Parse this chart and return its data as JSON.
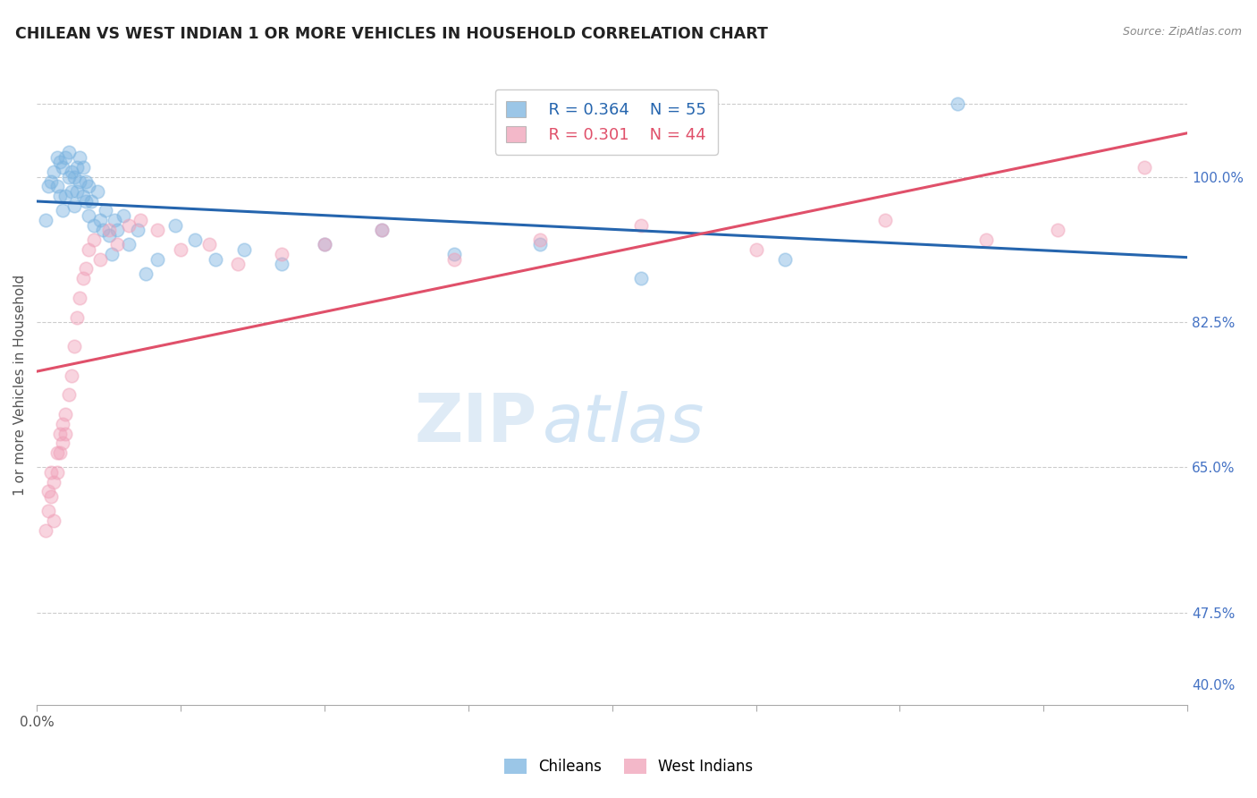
{
  "title": "CHILEAN VS WEST INDIAN 1 OR MORE VEHICLES IN HOUSEHOLD CORRELATION CHART",
  "source": "Source: ZipAtlas.com",
  "ylabel": "1 or more Vehicles in Household",
  "xmin": 0.0,
  "xmax": 0.4,
  "ymin": 0.38,
  "ymax": 1.04,
  "blue_color": "#7ab3e0",
  "pink_color": "#f0a0b8",
  "blue_line_color": "#2565ae",
  "pink_line_color": "#e0506a",
  "legend_r_blue": "R = 0.364",
  "legend_n_blue": "N = 55",
  "legend_r_pink": "R = 0.301",
  "legend_n_pink": "N = 44",
  "chilean_x": [
    0.003,
    0.004,
    0.005,
    0.006,
    0.007,
    0.007,
    0.008,
    0.008,
    0.009,
    0.009,
    0.01,
    0.01,
    0.011,
    0.011,
    0.012,
    0.012,
    0.013,
    0.013,
    0.014,
    0.014,
    0.015,
    0.015,
    0.016,
    0.016,
    0.017,
    0.017,
    0.018,
    0.018,
    0.019,
    0.02,
    0.021,
    0.022,
    0.023,
    0.024,
    0.025,
    0.026,
    0.027,
    0.028,
    0.03,
    0.032,
    0.035,
    0.038,
    0.042,
    0.048,
    0.055,
    0.062,
    0.072,
    0.085,
    0.1,
    0.12,
    0.145,
    0.175,
    0.21,
    0.26,
    0.32
  ],
  "chilean_y": [
    0.88,
    0.915,
    0.92,
    0.93,
    0.945,
    0.915,
    0.905,
    0.94,
    0.89,
    0.935,
    0.905,
    0.945,
    0.925,
    0.95,
    0.93,
    0.91,
    0.895,
    0.925,
    0.91,
    0.935,
    0.92,
    0.945,
    0.905,
    0.935,
    0.9,
    0.92,
    0.885,
    0.915,
    0.9,
    0.875,
    0.91,
    0.88,
    0.87,
    0.89,
    0.865,
    0.845,
    0.88,
    0.87,
    0.885,
    0.855,
    0.87,
    0.825,
    0.84,
    0.875,
    0.86,
    0.84,
    0.85,
    0.835,
    0.855,
    0.87,
    0.845,
    0.855,
    0.82,
    0.84,
    1.0
  ],
  "westindian_x": [
    0.003,
    0.004,
    0.004,
    0.005,
    0.005,
    0.006,
    0.006,
    0.007,
    0.007,
    0.008,
    0.008,
    0.009,
    0.009,
    0.01,
    0.01,
    0.011,
    0.012,
    0.013,
    0.014,
    0.015,
    0.016,
    0.017,
    0.018,
    0.02,
    0.022,
    0.025,
    0.028,
    0.032,
    0.036,
    0.042,
    0.05,
    0.06,
    0.07,
    0.085,
    0.1,
    0.12,
    0.145,
    0.175,
    0.21,
    0.25,
    0.295,
    0.33,
    0.355,
    0.385
  ],
  "westindian_y": [
    0.56,
    0.6,
    0.58,
    0.62,
    0.595,
    0.57,
    0.61,
    0.64,
    0.62,
    0.66,
    0.64,
    0.67,
    0.65,
    0.68,
    0.66,
    0.7,
    0.72,
    0.75,
    0.78,
    0.8,
    0.82,
    0.83,
    0.85,
    0.86,
    0.84,
    0.87,
    0.855,
    0.875,
    0.88,
    0.87,
    0.85,
    0.855,
    0.835,
    0.845,
    0.855,
    0.87,
    0.84,
    0.86,
    0.875,
    0.85,
    0.88,
    0.86,
    0.87,
    0.935
  ],
  "hgrid_vals": [
    0.475,
    0.625,
    0.775,
    0.925,
    1.0
  ],
  "marker_size": 110,
  "marker_alpha": 0.45,
  "line_width": 2.2,
  "watermark_zip_color": "#c8dff0",
  "watermark_atlas_color": "#b0cce8"
}
